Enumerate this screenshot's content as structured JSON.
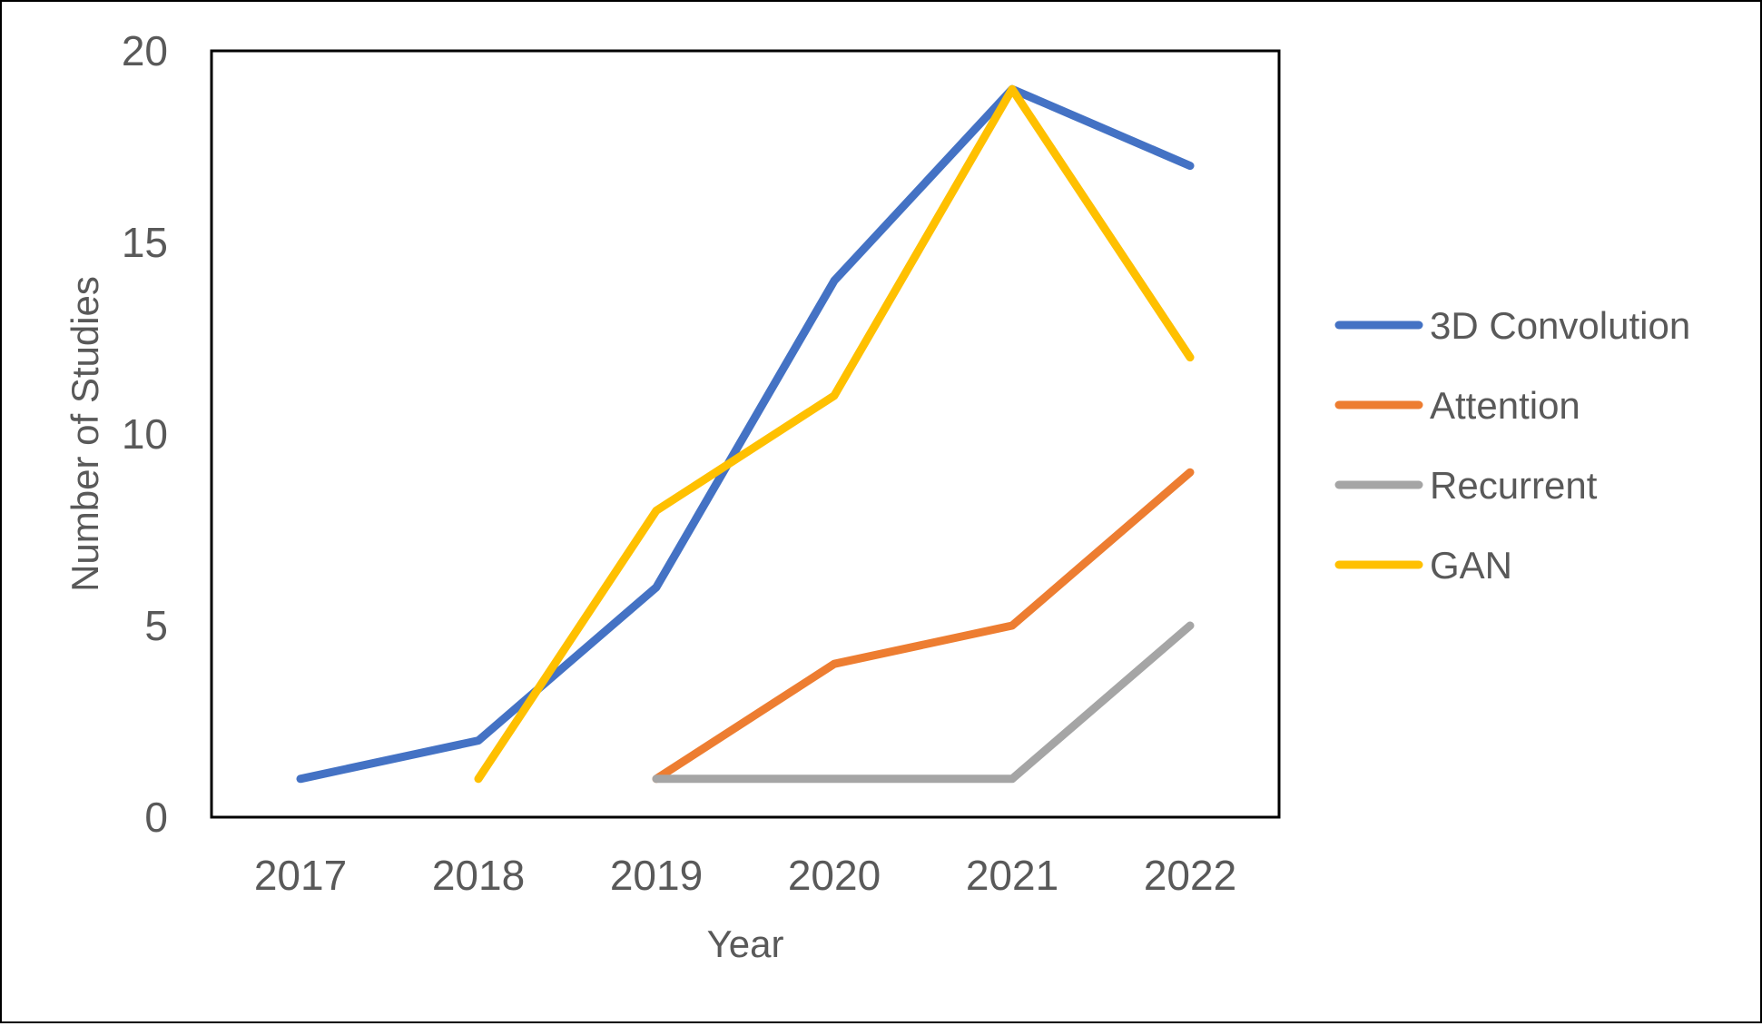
{
  "chart_data": {
    "type": "line",
    "title": "",
    "xlabel": "Year",
    "ylabel": "Number of Studies",
    "categories": [
      "2017",
      "2018",
      "2019",
      "2020",
      "2021",
      "2022"
    ],
    "yticks": [
      "0",
      "5",
      "10",
      "15",
      "20"
    ],
    "ylim": [
      0,
      20
    ],
    "grid": false,
    "legend_position": "right",
    "series": [
      {
        "name": "3D Convolution",
        "color": "#4472C4",
        "values": [
          1,
          2,
          6,
          14,
          19,
          17
        ]
      },
      {
        "name": "Attention",
        "color": "#ED7D31",
        "values": [
          null,
          null,
          1,
          4,
          5,
          9
        ]
      },
      {
        "name": "Recurrent",
        "color": "#A5A5A5",
        "values": [
          null,
          null,
          1,
          1,
          1,
          5
        ]
      },
      {
        "name": "GAN",
        "color": "#FFC000",
        "values": [
          null,
          1,
          8,
          11,
          19,
          12
        ]
      }
    ]
  }
}
